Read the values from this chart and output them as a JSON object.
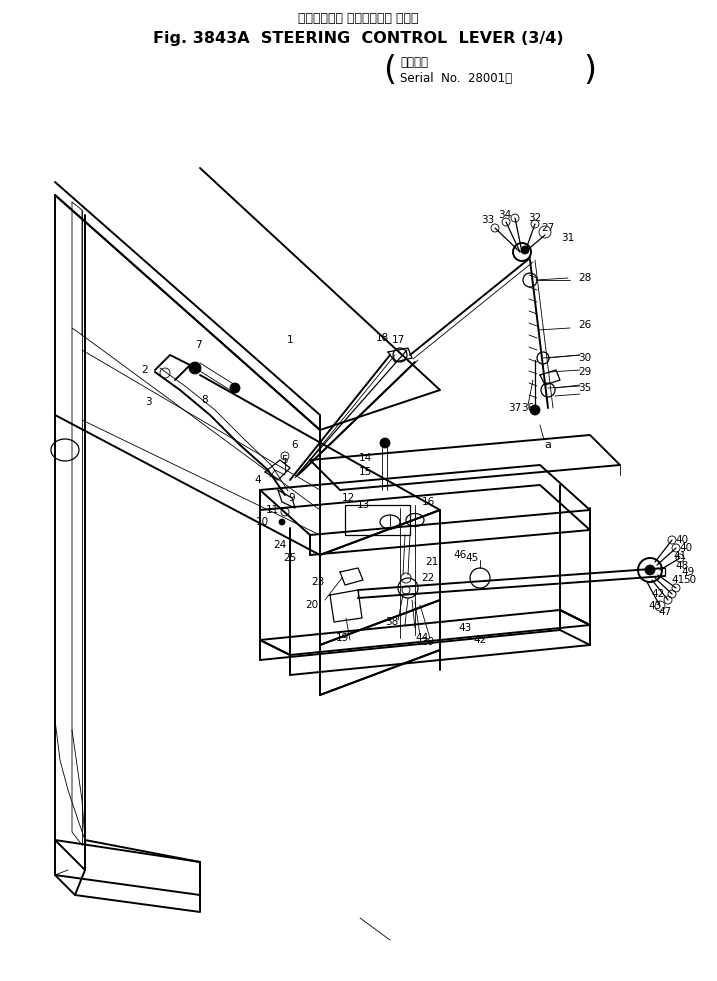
{
  "title_jp": "ステアリング コントロール レバー",
  "title_en": "Fig. 3843A  STEERING  CONTROL  LEVER (3/4)",
  "serial_jp": "適用号機",
  "serial_en": "Serial  No.  28001～",
  "bg_color": "#ffffff",
  "fig_width": 7.17,
  "fig_height": 9.81,
  "dpi": 100,
  "lw_thick": 1.4,
  "lw_med": 0.9,
  "lw_thin": 0.6
}
